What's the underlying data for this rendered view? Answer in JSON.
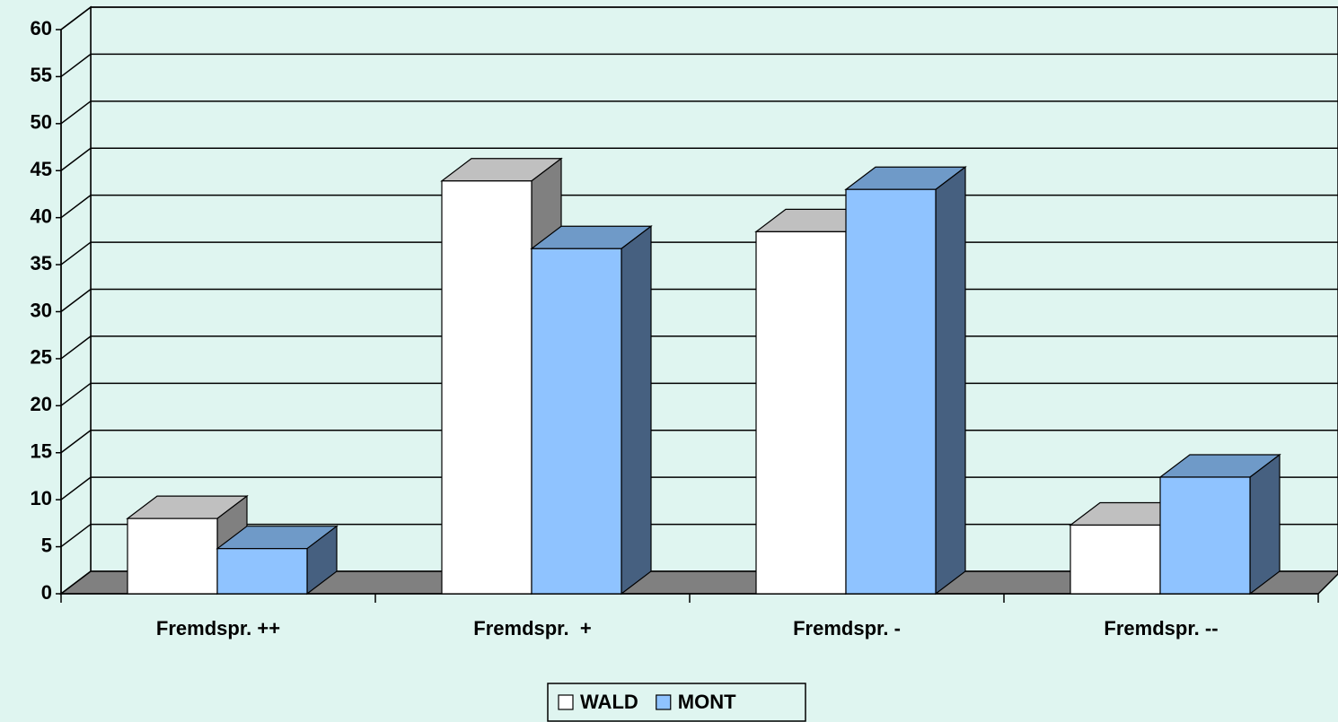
{
  "chart_data": {
    "type": "bar3d",
    "categories": [
      "Fremdspr. ++",
      "Fremdspr.  +",
      "Fremdspr. -",
      "Fremdspr. --"
    ],
    "series": [
      {
        "name": "WALD",
        "color": "#ffffff",
        "values": [
          8,
          43.9,
          38.5,
          7.3
        ]
      },
      {
        "name": "MONT",
        "color": "#8fc3ff",
        "values": [
          4.8,
          36.7,
          43,
          12.4
        ]
      }
    ],
    "ylim": [
      0,
      60
    ],
    "yticks": [
      0,
      5,
      10,
      15,
      20,
      25,
      30,
      35,
      40,
      45,
      50,
      55,
      60
    ],
    "grid": true,
    "legend": "bottom"
  }
}
